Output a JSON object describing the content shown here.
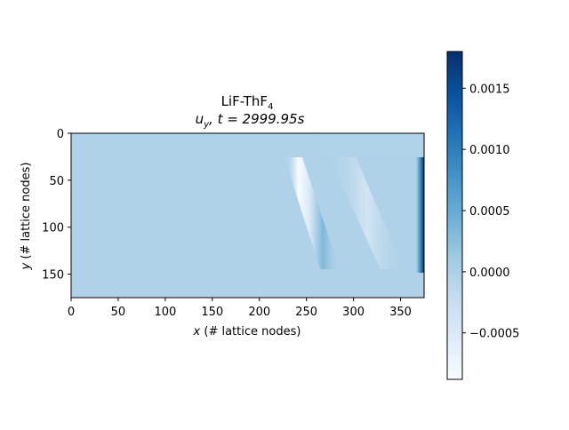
{
  "chart_data": {
    "type": "heatmap",
    "title_line1": "LiF-ThF",
    "title_line1_sub": "4",
    "title_line2_var": "u",
    "title_line2_var_sub": "y",
    "title_line2_rest": ", t = 2999.95s",
    "xlabel_var": "x",
    "xlabel_rest": " (# lattice nodes)",
    "ylabel_var": "y",
    "ylabel_rest": " (# lattice nodes)",
    "xlim": [
      0,
      375
    ],
    "ylim": [
      175,
      0
    ],
    "x_ticks": [
      0,
      50,
      100,
      150,
      200,
      250,
      300,
      350
    ],
    "x_tick_labels": [
      "0",
      "50",
      "100",
      "150",
      "200",
      "250",
      "300",
      "350"
    ],
    "y_ticks": [
      0,
      50,
      100,
      150
    ],
    "y_tick_labels": [
      "0",
      "50",
      "100",
      "150"
    ],
    "colormap": "Blues",
    "colorbar_range": [
      -0.00088,
      0.0018
    ],
    "colorbar_ticks": [
      -0.0005,
      0.0,
      0.0005,
      0.001,
      0.0015
    ],
    "colorbar_tick_labels": [
      "−0.0005",
      "0.0000",
      "0.0005",
      "0.0010",
      "0.0015"
    ],
    "background_value": 0.0,
    "features": [
      {
        "name": "steep-front",
        "y_range": [
          25,
          145
        ],
        "x_top": 228,
        "x_bottom": 268,
        "min_value": -0.00088,
        "max_value": 0.0006
      },
      {
        "name": "faint-front",
        "y_range": [
          25,
          145
        ],
        "x_top": 300,
        "x_bottom": 355,
        "min_value": -0.00035
      },
      {
        "name": "right-wall-layer",
        "y_range": [
          25,
          150
        ],
        "x_range": [
          368,
          375
        ],
        "max_value": 0.0018
      }
    ]
  }
}
